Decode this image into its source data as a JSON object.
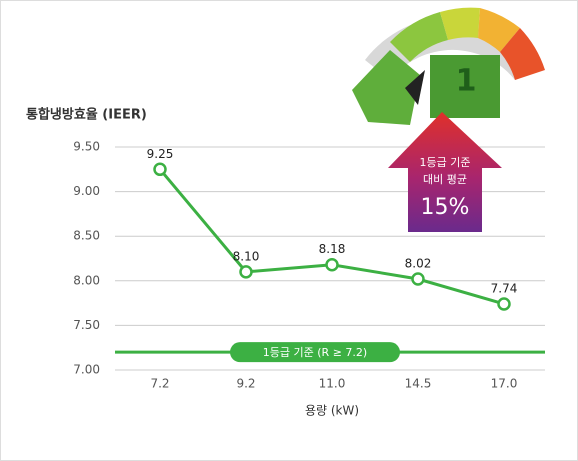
{
  "chart_data": {
    "type": "line",
    "ylabel": "통합냉방효율 (IEER)",
    "xlabel": "용량 (kW)",
    "categories": [
      "7.2",
      "9.2",
      "11.0",
      "14.5",
      "17.0"
    ],
    "values": [
      9.25,
      8.1,
      8.18,
      8.02,
      7.74
    ],
    "value_labels": [
      "9.25",
      "8.10",
      "8.18",
      "8.02",
      "7.74"
    ],
    "color": "#3cb043",
    "ylim": [
      7,
      9.5
    ],
    "yticks": [
      {
        "value": 7,
        "label": "7.00"
      },
      {
        "value": 7.5,
        "label": "7.50"
      },
      {
        "value": 8,
        "label": "8.00"
      },
      {
        "value": 8.5,
        "label": "8.50"
      },
      {
        "value": 9,
        "label": "9.00"
      },
      {
        "value": 9.5,
        "label": "9.50"
      }
    ],
    "grid": true,
    "reference_line": {
      "value": 7.2,
      "label": "1등급 기준 (R ≥ 7.2)",
      "color": "#3cb043"
    },
    "annotation": {
      "lines": [
        "1등급 기준",
        "대비 평균"
      ],
      "highlight": "15%"
    },
    "gauge_label": "1"
  }
}
